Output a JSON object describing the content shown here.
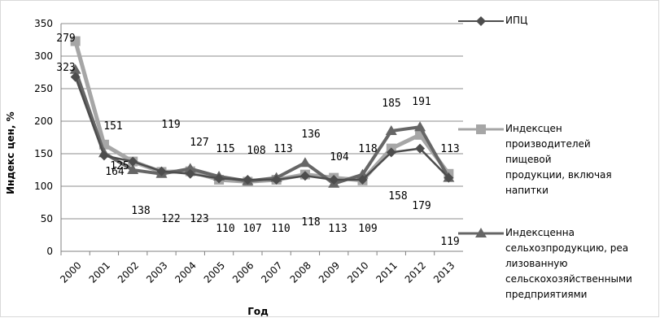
{
  "chart_data": {
    "type": "line",
    "xlabel": "Год",
    "ylabel": "Индекс цен, %",
    "x": [
      "2000",
      "2001",
      "2002",
      "2003",
      "2004",
      "2005",
      "2006",
      "2007",
      "2008",
      "2009",
      "2010",
      "2011",
      "2012",
      "2013"
    ],
    "ylim": [
      0,
      350
    ],
    "yticks": [
      0,
      50,
      100,
      150,
      200,
      250,
      300,
      350
    ],
    "grid": true,
    "legend_position": "right",
    "series": [
      {
        "name": "ИПЦ",
        "color": "#4d4d4d",
        "marker": "diamond",
        "values": [
          268,
          147,
          138,
          123,
          119,
          112,
          110,
          110,
          116,
          110,
          110,
          152,
          158,
          113
        ]
      },
      {
        "name": "Индекс цен производителей пищевой продукции, включая напитки",
        "color": "#a6a6a6",
        "marker": "square",
        "values": [
          323,
          164,
          138,
          122,
          123,
          110,
          107,
          110,
          118,
          113,
          109,
          158,
          179,
          119
        ]
      },
      {
        "name": "Индекс цен на сельхозпродукцию, реализованную сельскохозяйственными предприятиями",
        "color": "#666666",
        "marker": "triangle",
        "values": [
          279,
          151,
          125,
          119,
          127,
          115,
          108,
          113,
          136,
          104,
          118,
          185,
          191,
          113
        ]
      }
    ],
    "data_labels": {
      "above": [
        "279",
        "151",
        "125",
        "119",
        "127",
        "115",
        "108",
        "113",
        "136",
        "104",
        "118",
        "185",
        "191",
        "113"
      ],
      "below": [
        "323",
        "164",
        "138",
        "122",
        "123",
        "110",
        "107",
        "110",
        "118",
        "113",
        "109",
        "158",
        "179",
        "119"
      ]
    }
  },
  "legend_texts": [
    [
      "ИПЦ"
    ],
    [
      "Индексцен",
      "производителей",
      "пищевой",
      "продукции, включая",
      "напитки"
    ],
    [
      "Индексценна",
      "сельхозпродукцию, реа",
      "лизованную",
      "сельскохозяйственными",
      "предприятиями"
    ]
  ]
}
